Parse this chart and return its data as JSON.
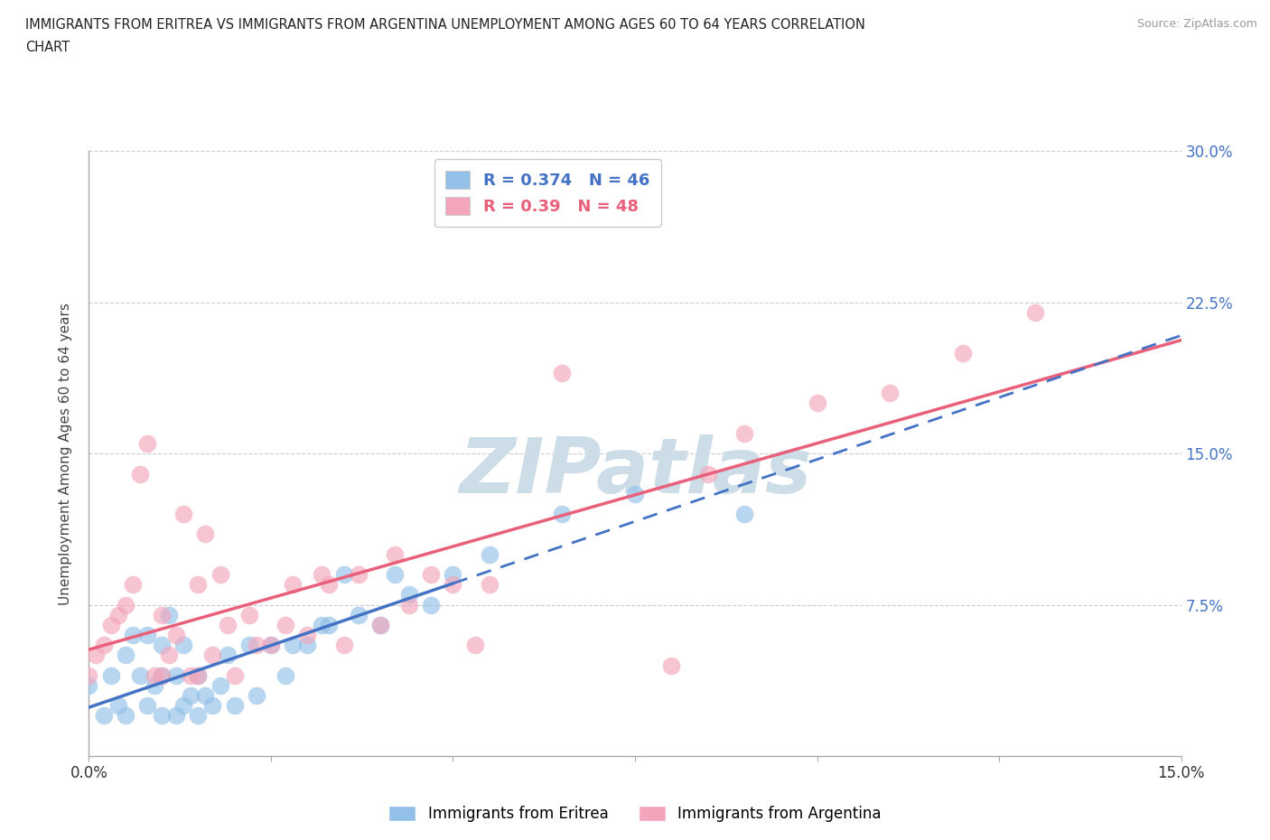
{
  "title_line1": "IMMIGRANTS FROM ERITREA VS IMMIGRANTS FROM ARGENTINA UNEMPLOYMENT AMONG AGES 60 TO 64 YEARS CORRELATION",
  "title_line2": "CHART",
  "source": "Source: ZipAtlas.com",
  "ylabel": "Unemployment Among Ages 60 to 64 years",
  "xlim": [
    0.0,
    0.15
  ],
  "ylim": [
    0.0,
    0.3
  ],
  "xticks": [
    0.0,
    0.025,
    0.05,
    0.075,
    0.1,
    0.125,
    0.15
  ],
  "yticks": [
    0.0,
    0.075,
    0.15,
    0.225,
    0.3
  ],
  "ytick_labels": [
    "",
    "7.5%",
    "15.0%",
    "22.5%",
    "30.0%"
  ],
  "xtick_labels": [
    "0.0%",
    "",
    "",
    "",
    "",
    "",
    "15.0%"
  ],
  "R_eritrea": 0.374,
  "N_eritrea": 46,
  "R_argentina": 0.39,
  "N_argentina": 48,
  "eritrea_color": "#92c0e8",
  "argentina_color": "#f4a5bb",
  "eritrea_line_color": "#4472c4",
  "argentina_line_color": "#e8607a",
  "watermark": "ZIPatlas",
  "watermark_color": "#ccdde8",
  "eritrea_x": [
    0.0,
    0.002,
    0.003,
    0.004,
    0.005,
    0.005,
    0.006,
    0.007,
    0.008,
    0.008,
    0.009,
    0.01,
    0.01,
    0.01,
    0.011,
    0.012,
    0.012,
    0.013,
    0.013,
    0.014,
    0.015,
    0.015,
    0.016,
    0.017,
    0.018,
    0.019,
    0.02,
    0.022,
    0.023,
    0.025,
    0.027,
    0.028,
    0.03,
    0.032,
    0.033,
    0.035,
    0.037,
    0.04,
    0.042,
    0.044,
    0.047,
    0.05,
    0.055,
    0.065,
    0.075,
    0.09
  ],
  "eritrea_y": [
    0.035,
    0.02,
    0.04,
    0.025,
    0.02,
    0.05,
    0.06,
    0.04,
    0.025,
    0.06,
    0.035,
    0.02,
    0.04,
    0.055,
    0.07,
    0.02,
    0.04,
    0.025,
    0.055,
    0.03,
    0.02,
    0.04,
    0.03,
    0.025,
    0.035,
    0.05,
    0.025,
    0.055,
    0.03,
    0.055,
    0.04,
    0.055,
    0.055,
    0.065,
    0.065,
    0.09,
    0.07,
    0.065,
    0.09,
    0.08,
    0.075,
    0.09,
    0.1,
    0.12,
    0.13,
    0.12
  ],
  "argentina_x": [
    0.0,
    0.001,
    0.002,
    0.003,
    0.004,
    0.005,
    0.006,
    0.007,
    0.008,
    0.009,
    0.01,
    0.01,
    0.011,
    0.012,
    0.013,
    0.014,
    0.015,
    0.015,
    0.016,
    0.017,
    0.018,
    0.019,
    0.02,
    0.022,
    0.023,
    0.025,
    0.027,
    0.028,
    0.03,
    0.032,
    0.033,
    0.035,
    0.037,
    0.04,
    0.042,
    0.044,
    0.047,
    0.05,
    0.053,
    0.055,
    0.065,
    0.08,
    0.085,
    0.09,
    0.1,
    0.11,
    0.12,
    0.13
  ],
  "argentina_y": [
    0.04,
    0.05,
    0.055,
    0.065,
    0.07,
    0.075,
    0.085,
    0.14,
    0.155,
    0.04,
    0.04,
    0.07,
    0.05,
    0.06,
    0.12,
    0.04,
    0.04,
    0.085,
    0.11,
    0.05,
    0.09,
    0.065,
    0.04,
    0.07,
    0.055,
    0.055,
    0.065,
    0.085,
    0.06,
    0.09,
    0.085,
    0.055,
    0.09,
    0.065,
    0.1,
    0.075,
    0.09,
    0.085,
    0.055,
    0.085,
    0.19,
    0.045,
    0.14,
    0.16,
    0.175,
    0.18,
    0.2,
    0.22
  ]
}
